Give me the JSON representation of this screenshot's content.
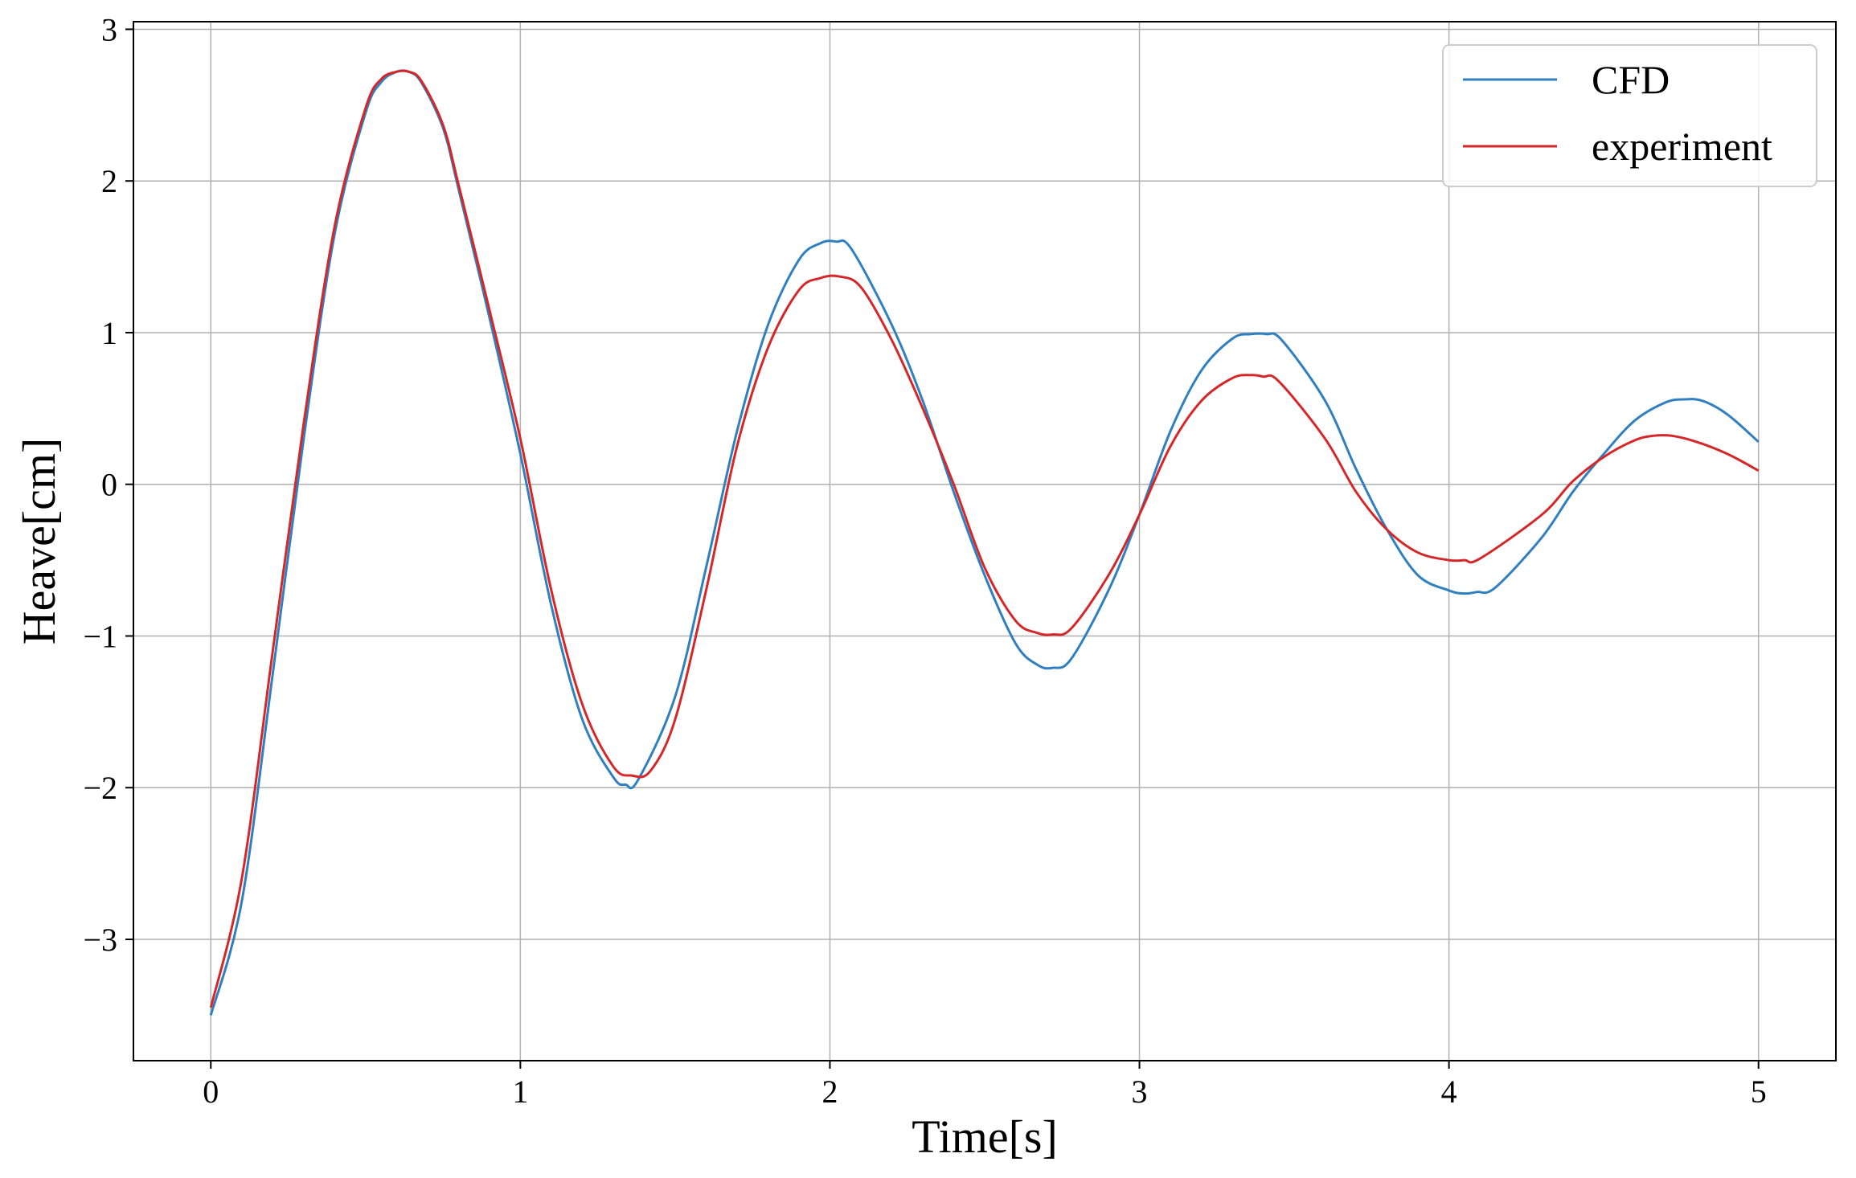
{
  "chart_data": {
    "type": "line",
    "title": "",
    "xlabel": "Time[s]",
    "ylabel": "Heave[cm]",
    "xlim": [
      -0.25,
      5.25
    ],
    "ylim": [
      -3.8,
      3.05
    ],
    "x_ticks": [
      0,
      1,
      2,
      3,
      4,
      5
    ],
    "y_ticks": [
      -3,
      -2,
      -1,
      0,
      1,
      2,
      3
    ],
    "x_tick_labels": [
      "0",
      "1",
      "2",
      "3",
      "4",
      "5"
    ],
    "y_tick_labels": [
      "−3",
      "−2",
      "−1",
      "0",
      "1",
      "2",
      "3"
    ],
    "grid": true,
    "legend": {
      "position": "top-right"
    },
    "series": [
      {
        "name": "CFD",
        "color": "#2f7fc1",
        "x": [
          0,
          0.1,
          0.2,
          0.3,
          0.4,
          0.5,
          0.55,
          0.6,
          0.64,
          0.68,
          0.75,
          0.8,
          0.9,
          1.0,
          1.1,
          1.2,
          1.3,
          1.34,
          1.38,
          1.5,
          1.6,
          1.7,
          1.8,
          1.9,
          1.97,
          2.02,
          2.07,
          2.2,
          2.3,
          2.4,
          2.5,
          2.6,
          2.67,
          2.72,
          2.78,
          2.9,
          3.0,
          3.1,
          3.2,
          3.3,
          3.36,
          3.41,
          3.46,
          3.6,
          3.7,
          3.8,
          3.9,
          4.0,
          4.05,
          4.09,
          4.15,
          4.3,
          4.4,
          4.5,
          4.6,
          4.7,
          4.76,
          4.82,
          4.9,
          5.0
        ],
        "y": [
          -3.5,
          -2.75,
          -1.25,
          0.3,
          1.65,
          2.45,
          2.65,
          2.72,
          2.72,
          2.65,
          2.35,
          1.95,
          1.1,
          0.2,
          -0.8,
          -1.55,
          -1.93,
          -1.98,
          -1.95,
          -1.4,
          -0.55,
          0.35,
          1.05,
          1.48,
          1.59,
          1.6,
          1.55,
          1.05,
          0.55,
          -0.05,
          -0.6,
          -1.05,
          -1.19,
          -1.21,
          -1.15,
          -0.7,
          -0.2,
          0.35,
          0.75,
          0.96,
          0.99,
          0.99,
          0.95,
          0.55,
          0.1,
          -0.3,
          -0.6,
          -0.7,
          -0.72,
          -0.71,
          -0.68,
          -0.35,
          -0.05,
          0.2,
          0.42,
          0.54,
          0.56,
          0.55,
          0.46,
          0.28
        ]
      },
      {
        "name": "experiment",
        "color": "#d62728",
        "x": [
          0,
          0.1,
          0.2,
          0.3,
          0.4,
          0.5,
          0.55,
          0.6,
          0.64,
          0.68,
          0.75,
          0.8,
          0.9,
          1.0,
          1.1,
          1.2,
          1.3,
          1.36,
          1.42,
          1.5,
          1.6,
          1.7,
          1.8,
          1.9,
          1.97,
          2.03,
          2.1,
          2.2,
          2.3,
          2.4,
          2.5,
          2.6,
          2.67,
          2.72,
          2.78,
          2.9,
          3.0,
          3.1,
          3.2,
          3.3,
          3.36,
          3.4,
          3.45,
          3.6,
          3.7,
          3.8,
          3.9,
          4.0,
          4.05,
          4.1,
          4.3,
          4.4,
          4.5,
          4.6,
          4.66,
          4.72,
          4.8,
          4.9,
          5.0
        ],
        "y": [
          -3.45,
          -2.6,
          -1.1,
          0.4,
          1.7,
          2.48,
          2.67,
          2.72,
          2.72,
          2.66,
          2.37,
          1.98,
          1.15,
          0.3,
          -0.7,
          -1.45,
          -1.86,
          -1.92,
          -1.89,
          -1.55,
          -0.7,
          0.25,
          0.9,
          1.28,
          1.36,
          1.37,
          1.3,
          0.95,
          0.5,
          0.0,
          -0.55,
          -0.9,
          -0.98,
          -0.99,
          -0.95,
          -0.6,
          -0.2,
          0.25,
          0.55,
          0.7,
          0.72,
          0.71,
          0.68,
          0.3,
          -0.05,
          -0.3,
          -0.45,
          -0.5,
          -0.5,
          -0.49,
          -0.2,
          0.02,
          0.18,
          0.29,
          0.32,
          0.32,
          0.28,
          0.2,
          0.09
        ]
      }
    ]
  }
}
